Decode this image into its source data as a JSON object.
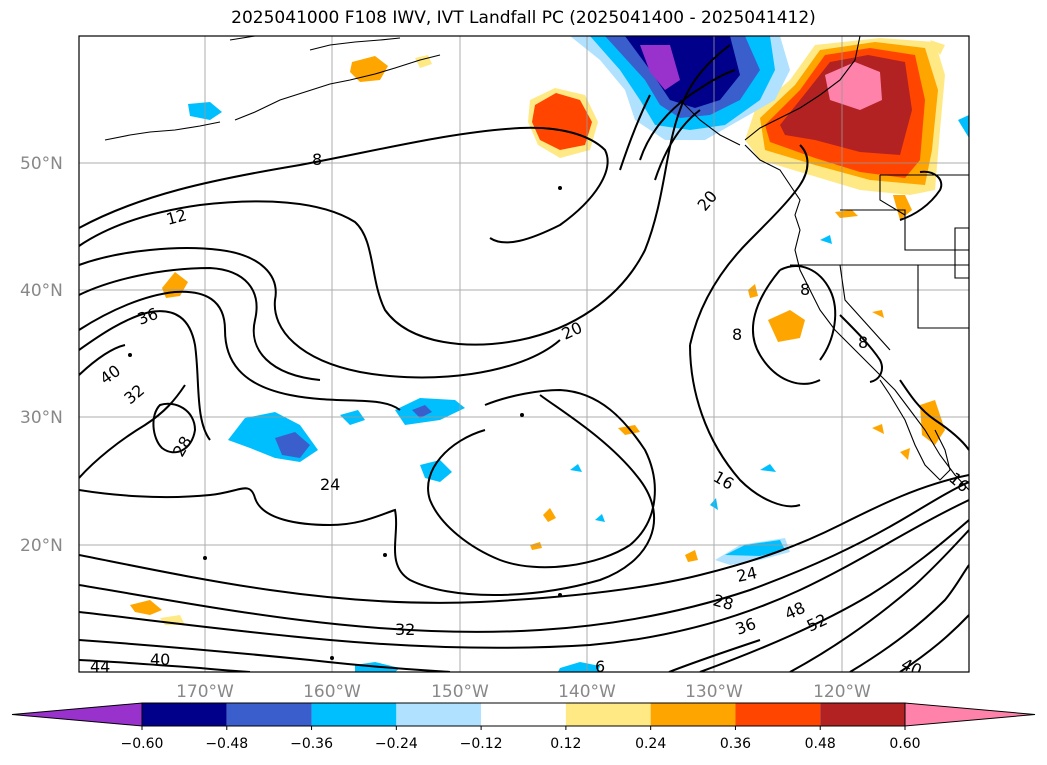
{
  "title": "2025041000 F108 IWV, IVT Landfall PC (2025041400 - 2025041412)",
  "lat_labels": [
    "50°N",
    "40°N",
    "30°N",
    "20°N"
  ],
  "lon_labels": [
    "170°W",
    "160°W",
    "150°W",
    "140°W",
    "130°W",
    "120°W"
  ],
  "colorbar": {
    "colors": [
      "#9932CC",
      "#00008B",
      "#3A5FCD",
      "#00BFFF",
      "#B0E2FF",
      "#FFFFFF",
      "#FFE985",
      "#FFA500",
      "#FF4500",
      "#B22222",
      "#FF82AB"
    ],
    "tick_labels": [
      "−0.60",
      "−0.48",
      "−0.36",
      "−0.24",
      "−0.12",
      "0.12",
      "0.24",
      "0.36",
      "0.48",
      "0.60"
    ]
  },
  "contour_labels": [
    "8",
    "12",
    "36",
    "40",
    "32",
    "28",
    "24",
    "20",
    "16",
    "20",
    "24",
    "28",
    "36",
    "48",
    "52",
    "40",
    "32",
    "40",
    "44",
    "8",
    "8",
    "8",
    "6",
    "16"
  ]
}
